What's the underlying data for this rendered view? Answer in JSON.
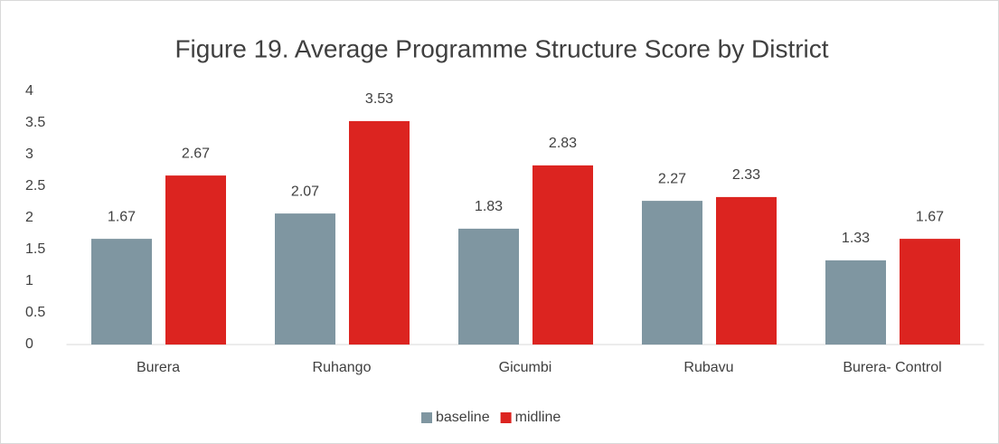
{
  "chart_data": {
    "type": "bar",
    "title": "Figure 19. Average Programme Structure Score by District",
    "categories": [
      "Burera",
      "Ruhango",
      "Gicumbi",
      "Rubavu",
      "Burera- Control"
    ],
    "series": [
      {
        "name": "baseline",
        "color": "#7f96a1",
        "values": [
          1.67,
          2.07,
          1.83,
          2.27,
          1.33
        ]
      },
      {
        "name": "midline",
        "color": "#dc2420",
        "values": [
          2.67,
          3.53,
          2.83,
          2.33,
          1.67
        ]
      }
    ],
    "ylim": [
      0,
      4
    ],
    "yticks": [
      0,
      0.5,
      1,
      1.5,
      2,
      2.5,
      3,
      3.5,
      4
    ],
    "grid": false,
    "legend": "bottom"
  }
}
